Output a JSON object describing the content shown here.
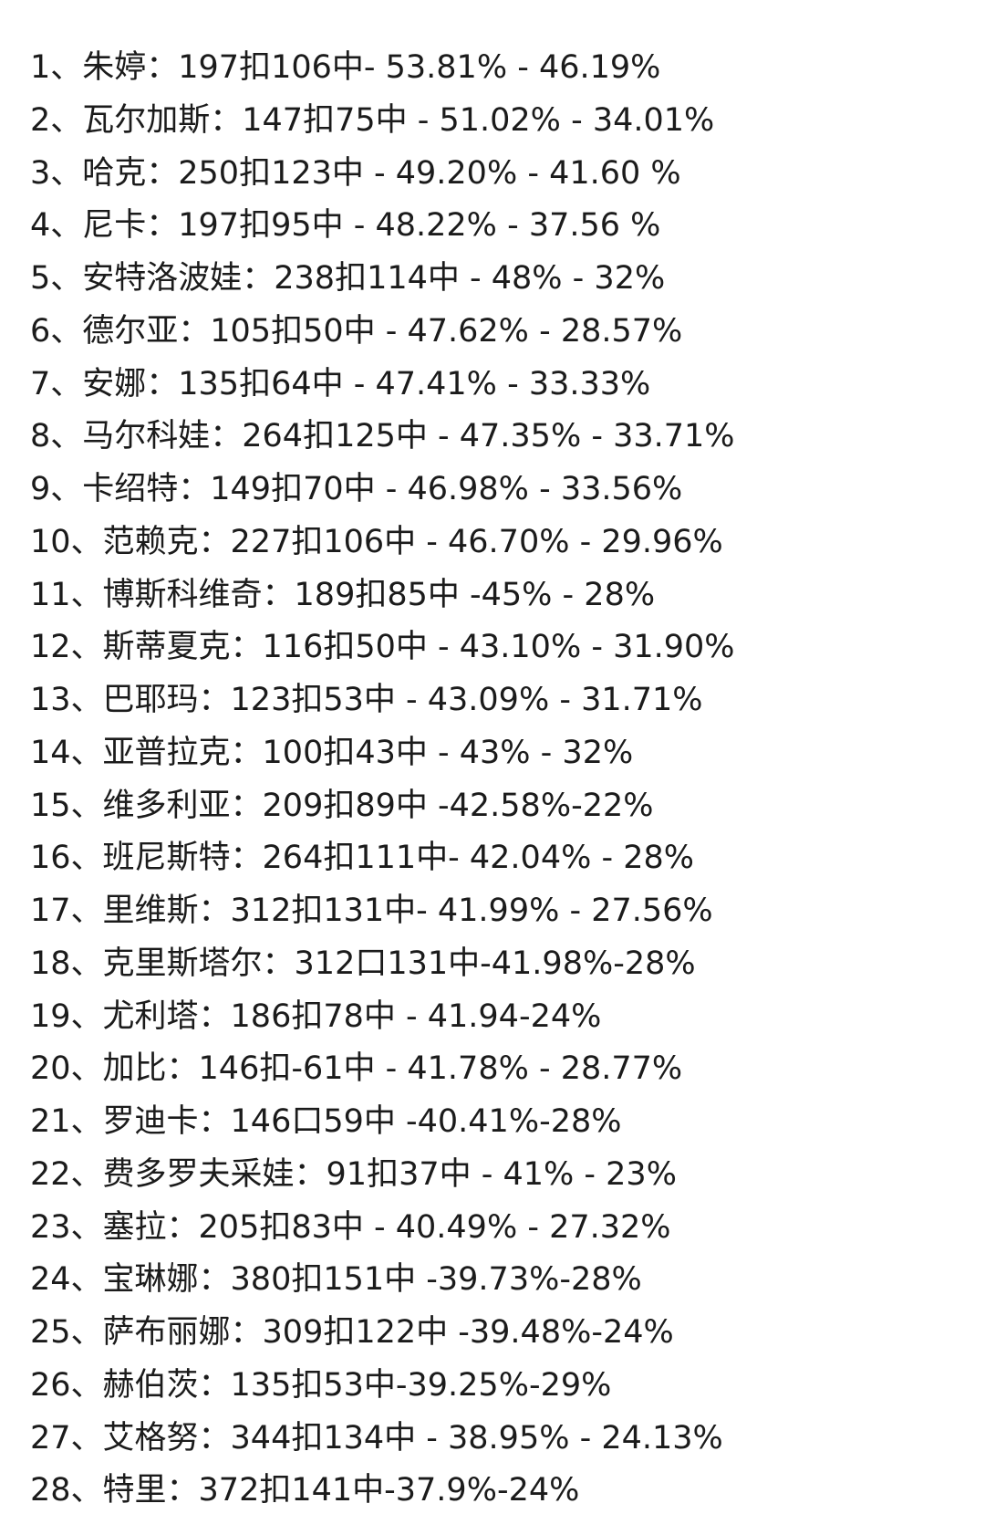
{
  "document": {
    "lines": [
      "1、朱婷：197扣106中- 53.81% - 46.19%",
      "2、瓦尔加斯：147扣75中 - 51.02% - 34.01%",
      "3、哈克：250扣123中 - 49.20% - 41.60 %",
      "4、尼卡：197扣95中 - 48.22% - 37.56 %",
      "5、安特洛波娃：238扣114中 - 48% - 32%",
      "6、德尔亚：105扣50中 - 47.62% - 28.57%",
      "7、安娜：135扣64中 - 47.41% - 33.33%",
      "8、马尔科娃：264扣125中 - 47.35% - 33.71%",
      "9、卡绍特：149扣70中 - 46.98% - 33.56%",
      "10、范赖克：227扣106中 - 46.70% - 29.96%",
      "11、博斯科维奇：189扣85中 -45% - 28%",
      "12、斯蒂夏克：116扣50中 - 43.10% - 31.90%",
      "13、巴耶玛：123扣53中 - 43.09% - 31.71%",
      "14、亚普拉克：100扣43中 - 43% - 32%",
      "15、维多利亚：209扣89中 -42.58%-22%",
      "16、班尼斯特：264扣111中- 42.04% - 28%",
      "17、里维斯：312扣131中- 41.99% - 27.56%",
      "18、克里斯塔尔：312口131中-41.98%-28%",
      "19、尤利塔：186扣78中 - 41.94-24%",
      "20、加比：146扣-61中 - 41.78% - 28.77%",
      "21、罗迪卡：146口59中 -40.41%-28%",
      "22、费多罗夫采娃：91扣37中 - 41% - 23%",
      "23、塞拉：205扣83中 - 40.49% - 27.32%",
      "24、宝琳娜：380扣151中 -39.73%-28%",
      "25、萨布丽娜：309扣122中 -39.48%-24%",
      "26、赫伯茨：135扣53中-39.25%-29%",
      "27、艾格努：344扣134中 - 38.95% - 24.13%",
      "28、特里：372扣141中-37.9%-24%"
    ]
  }
}
